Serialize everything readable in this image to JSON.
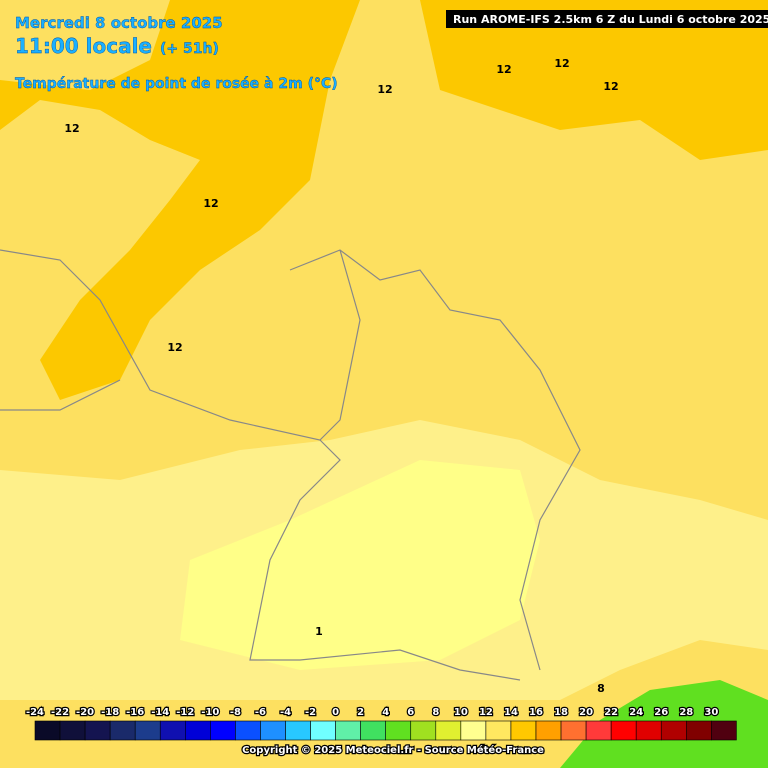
{
  "header": {
    "date": "Mercredi 8 octobre 2025",
    "time": "11:00 locale",
    "offset": "(+ 51h)",
    "variable": "Température de point de rosée à 2m (°C)",
    "run": "Run AROME-IFS 2.5km 6 Z du Lundi 6 octobre 2025"
  },
  "contour_labels": [
    "12",
    "12",
    "12",
    "12",
    "12",
    "12",
    "12",
    "1",
    "8"
  ],
  "legend": {
    "ticks": [
      -24,
      -22,
      -20,
      -18,
      -16,
      -14,
      -12,
      -10,
      -8,
      -6,
      -4,
      -2,
      0,
      2,
      4,
      6,
      8,
      10,
      12,
      14,
      16,
      18,
      20,
      22,
      24,
      26,
      28,
      30
    ],
    "colors": [
      "#0a0a28",
      "#10103a",
      "#141450",
      "#1a2a6a",
      "#1c3c8c",
      "#1010b0",
      "#0000d8",
      "#0000ff",
      "#0a50ff",
      "#1e90ff",
      "#28c8ff",
      "#70ffff",
      "#60f0a8",
      "#40e060",
      "#60e020",
      "#a0e020",
      "#e0f030",
      "#ffff90",
      "#ffe860",
      "#ffc800",
      "#ffa000",
      "#ff7030",
      "#ff3a3a",
      "#ff0000",
      "#e00000",
      "#b00000",
      "#800000",
      "#500010"
    ]
  },
  "footer": {
    "copyright": "Copyright © 2025 Meteociel.fr - Source Météo-France"
  }
}
